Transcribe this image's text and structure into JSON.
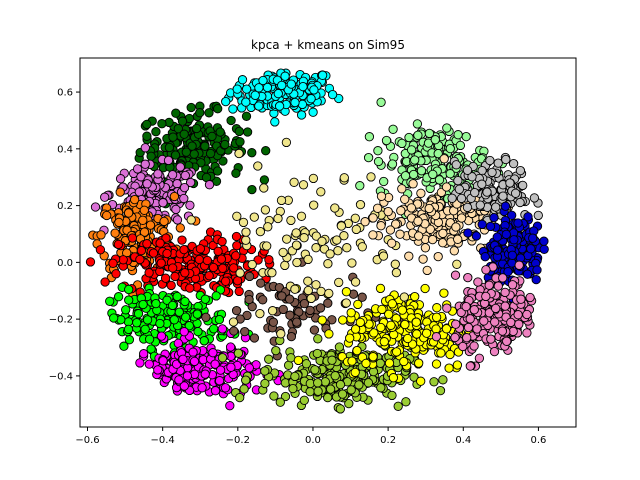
{
  "chart_data": {
    "type": "scatter",
    "title": "kpca + kmeans on Sim95",
    "xlabel": "",
    "ylabel": "",
    "xlim": [
      -0.62,
      0.7
    ],
    "ylim": [
      -0.58,
      0.72
    ],
    "xticks": [
      -0.6,
      -0.4,
      -0.2,
      0.0,
      0.2,
      0.4,
      0.6
    ],
    "yticks": [
      -0.4,
      -0.2,
      0.0,
      0.2,
      0.4,
      0.6
    ],
    "xtick_labels": [
      "−0.6",
      "−0.4",
      "−0.2",
      "0.0",
      "0.2",
      "0.4",
      "0.6"
    ],
    "ytick_labels": [
      "−0.4",
      "−0.2",
      "0.0",
      "0.2",
      "0.4",
      "0.6"
    ],
    "grid": false,
    "marker_edge_color": "#000000",
    "clusters": [
      {
        "color": "#00ffff",
        "cx": -0.08,
        "cy": 0.6,
        "sx": 0.07,
        "sy": 0.04,
        "n": 160
      },
      {
        "color": "#006400",
        "cx": -0.32,
        "cy": 0.41,
        "sx": 0.07,
        "sy": 0.06,
        "n": 190
      },
      {
        "color": "#da70d6",
        "cx": -0.42,
        "cy": 0.24,
        "sx": 0.06,
        "sy": 0.05,
        "n": 150
      },
      {
        "color": "#ff7f0e",
        "cx": -0.47,
        "cy": 0.09,
        "sx": 0.05,
        "sy": 0.07,
        "n": 180
      },
      {
        "color": "#ff0000",
        "cx": -0.33,
        "cy": -0.01,
        "sx": 0.09,
        "sy": 0.05,
        "n": 220
      },
      {
        "color": "#00ff00",
        "cx": -0.38,
        "cy": -0.2,
        "sx": 0.08,
        "sy": 0.05,
        "n": 190
      },
      {
        "color": "#ff00ff",
        "cx": -0.31,
        "cy": -0.38,
        "sx": 0.08,
        "sy": 0.05,
        "n": 210
      },
      {
        "color": "#795548",
        "cx": -0.06,
        "cy": -0.18,
        "sx": 0.1,
        "sy": 0.07,
        "n": 70
      },
      {
        "color": "#9acd32",
        "cx": 0.06,
        "cy": -0.4,
        "sx": 0.1,
        "sy": 0.05,
        "n": 240
      },
      {
        "color": "#ffff00",
        "cx": 0.26,
        "cy": -0.24,
        "sx": 0.09,
        "sy": 0.07,
        "n": 230
      },
      {
        "color": "#f0e68c",
        "cx": 0.0,
        "cy": 0.1,
        "sx": 0.14,
        "sy": 0.13,
        "n": 110
      },
      {
        "color": "#98fb98",
        "cx": 0.32,
        "cy": 0.35,
        "sx": 0.07,
        "sy": 0.06,
        "n": 180
      },
      {
        "color": "#ffdead",
        "cx": 0.32,
        "cy": 0.15,
        "sx": 0.08,
        "sy": 0.06,
        "n": 170
      },
      {
        "color": "#c0c0c0",
        "cx": 0.48,
        "cy": 0.25,
        "sx": 0.05,
        "sy": 0.05,
        "n": 140
      },
      {
        "color": "#0000cd",
        "cx": 0.53,
        "cy": 0.05,
        "sx": 0.04,
        "sy": 0.06,
        "n": 170
      },
      {
        "color": "#ee82c0",
        "cx": 0.5,
        "cy": -0.2,
        "sx": 0.06,
        "sy": 0.07,
        "n": 230
      }
    ]
  }
}
